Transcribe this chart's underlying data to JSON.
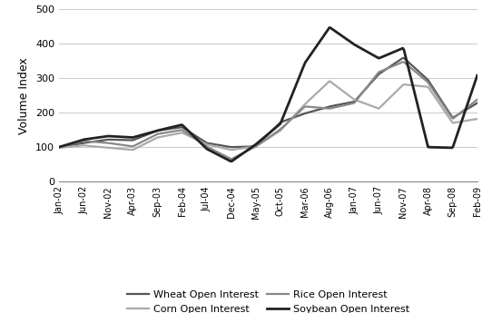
{
  "ylabel": "Volume Index",
  "ylim": [
    0,
    500
  ],
  "yticks": [
    0,
    100,
    200,
    300,
    400,
    500
  ],
  "x_labels": [
    "Jan-02",
    "Jun-02",
    "Nov-02",
    "Apr-03",
    "Sep-03",
    "Feb-04",
    "Jul-04",
    "Dec-04",
    "May-05",
    "Oct-05",
    "Mar-06",
    "Aug-06",
    "Jan-07",
    "Jun-07",
    "Nov-07",
    "Apr-08",
    "Sep-08",
    "Feb-09"
  ],
  "series": {
    "Wheat Open Interest": {
      "color": "#555555",
      "linewidth": 1.6,
      "values": [
        100,
        112,
        122,
        120,
        148,
        158,
        112,
        100,
        102,
        172,
        198,
        218,
        232,
        312,
        360,
        295,
        185,
        228
      ]
    },
    "Corn Open Interest": {
      "color": "#aaaaaa",
      "linewidth": 1.6,
      "values": [
        98,
        105,
        98,
        92,
        128,
        142,
        108,
        92,
        102,
        148,
        225,
        292,
        238,
        212,
        282,
        275,
        170,
        182
      ]
    },
    "Rice Open Interest": {
      "color": "#888888",
      "linewidth": 1.6,
      "values": [
        100,
        118,
        112,
        102,
        138,
        150,
        102,
        65,
        102,
        152,
        218,
        212,
        228,
        318,
        348,
        288,
        182,
        238
      ]
    },
    "Soybean Open Interest": {
      "color": "#222222",
      "linewidth": 2.0,
      "values": [
        100,
        122,
        132,
        128,
        148,
        165,
        95,
        58,
        108,
        168,
        345,
        448,
        398,
        358,
        388,
        100,
        98,
        308
      ]
    }
  },
  "legend_order": [
    "Wheat Open Interest",
    "Corn Open Interest",
    "Rice Open Interest",
    "Soybean Open Interest"
  ],
  "legend_ncol": 2,
  "background_color": "#ffffff",
  "grid_color": "#cccccc"
}
